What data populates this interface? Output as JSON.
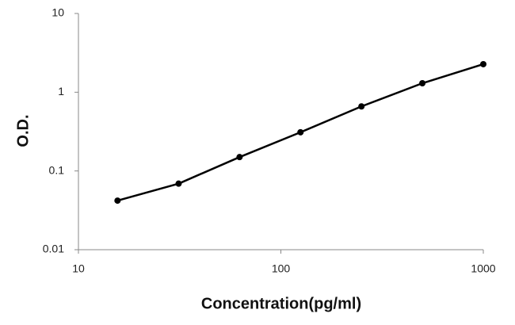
{
  "chart_data": {
    "type": "line",
    "x_label": "Concentration(pg/ml)",
    "y_label": "O.D.",
    "x": [
      15.6,
      31.25,
      62.5,
      125,
      250,
      500,
      1000
    ],
    "series": [
      {
        "color": "#000000",
        "values": [
          0.042,
          0.069,
          0.15,
          0.31,
          0.66,
          1.3,
          2.27
        ]
      }
    ],
    "xlim": [
      10,
      1000
    ],
    "xticks": [
      10,
      100,
      1000
    ],
    "xscale": "log",
    "ylim": [
      0.01,
      10
    ],
    "yticks": [
      0.01,
      0.1,
      1,
      10
    ],
    "yscale": "log"
  }
}
